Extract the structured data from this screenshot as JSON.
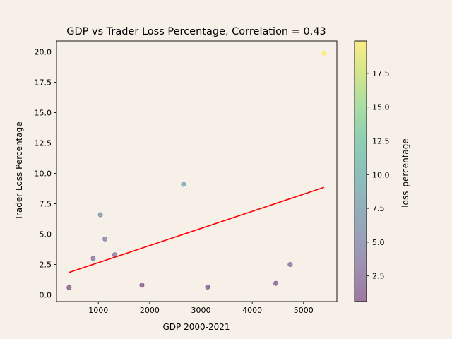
{
  "chart_data": {
    "type": "scatter",
    "title": "GDP vs Trader Loss Percentage, Correlation = 0.43",
    "xlabel": "GDP 2000-2021",
    "ylabel": "Trader Loss Percentage",
    "xlim": [
      185,
      5650
    ],
    "ylim": [
      -0.55,
      20.9
    ],
    "xticks": [
      "1000",
      "2000",
      "3000",
      "4000",
      "5000"
    ],
    "xtick_values": [
      1000,
      2000,
      3000,
      4000,
      5000
    ],
    "yticks": [
      "0.0",
      "2.5",
      "5.0",
      "7.5",
      "10.0",
      "12.5",
      "15.0",
      "17.5",
      "20.0"
    ],
    "ytick_values": [
      0,
      2.5,
      5,
      7.5,
      10,
      12.5,
      15,
      17.5,
      20
    ],
    "grid": false,
    "points": [
      {
        "x": 430,
        "y": 0.6
      },
      {
        "x": 900,
        "y": 3.0
      },
      {
        "x": 1040,
        "y": 6.6
      },
      {
        "x": 1130,
        "y": 4.6
      },
      {
        "x": 1320,
        "y": 3.3
      },
      {
        "x": 1850,
        "y": 0.8
      },
      {
        "x": 2660,
        "y": 9.1
      },
      {
        "x": 3130,
        "y": 0.65
      },
      {
        "x": 4460,
        "y": 0.95
      },
      {
        "x": 4740,
        "y": 2.5
      },
      {
        "x": 5400,
        "y": 19.9
      }
    ],
    "trendline": {
      "x": [
        430,
        5400
      ],
      "y": [
        1.85,
        8.85
      ],
      "color": "#ff0000"
    },
    "colorbar": {
      "label": "loss_percentage",
      "range": [
        0.6,
        19.9
      ],
      "ticks": [
        "2.5",
        "5.0",
        "7.5",
        "10.0",
        "12.5",
        "15.0",
        "17.5"
      ],
      "tick_values": [
        2.5,
        5,
        7.5,
        10,
        12.5,
        15,
        17.5
      ],
      "colormap": "viridis",
      "alpha": 0.5
    }
  }
}
